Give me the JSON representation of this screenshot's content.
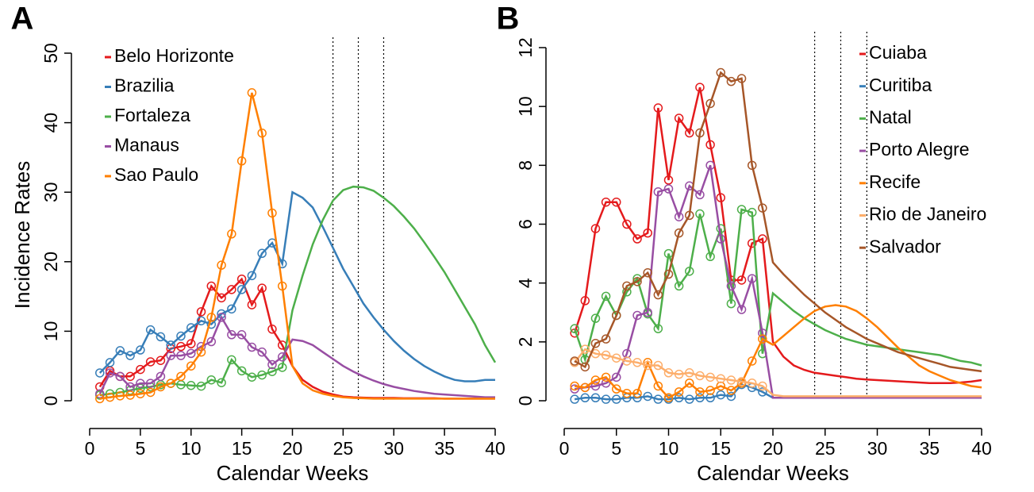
{
  "chart_data": [
    {
      "type": "line",
      "panel_label": "A",
      "xlabel": "Calendar Weeks",
      "ylabel": "Incidence Rates",
      "xlim": [
        0,
        40
      ],
      "xticks": [
        0,
        5,
        10,
        15,
        20,
        25,
        30,
        35,
        40
      ],
      "ylim": [
        0,
        50
      ],
      "yticks": [
        0,
        10,
        20,
        30,
        40,
        50
      ],
      "legend": "top-left",
      "observed_until": 19,
      "vlines": [
        24,
        26.5,
        29
      ],
      "x": [
        1,
        2,
        3,
        4,
        5,
        6,
        7,
        8,
        9,
        10,
        11,
        12,
        13,
        14,
        15,
        16,
        17,
        18,
        19,
        20,
        21,
        22,
        23,
        24,
        25,
        26,
        27,
        28,
        29,
        30,
        31,
        32,
        33,
        34,
        35,
        36,
        37,
        38,
        39,
        40
      ],
      "series": [
        {
          "name": "Belo Horizonte",
          "color": "#e41a1c",
          "values": [
            2,
            4.3,
            3.5,
            3.5,
            4.5,
            5.6,
            5.8,
            7.5,
            7.8,
            8.2,
            12.8,
            16.5,
            14.8,
            16,
            17.5,
            13.8,
            16.2,
            10.3,
            8,
            5,
            3,
            2,
            1.3,
            0.9,
            0.6,
            0.5,
            0.45,
            0.4,
            0.4,
            0.4,
            0.35,
            0.35,
            0.35,
            0.35,
            0.3,
            0.3,
            0.3,
            0.3,
            0.3,
            0.3
          ]
        },
        {
          "name": "Brazilia",
          "color": "#377eb8",
          "values": [
            4,
            5.5,
            7.2,
            6.5,
            7.3,
            10.2,
            9.2,
            8,
            9.3,
            10.5,
            11.5,
            11,
            12.5,
            13.2,
            16,
            18,
            21.2,
            22.7,
            19.7,
            30,
            29.2,
            27.8,
            25,
            22,
            19,
            16.5,
            14,
            12,
            10.2,
            8.6,
            7.2,
            6,
            5,
            4.2,
            3.5,
            3,
            2.8,
            2.8,
            3,
            3
          ]
        },
        {
          "name": "Fortaleza",
          "color": "#4daf4a",
          "values": [
            0.8,
            1,
            1.2,
            1.5,
            1.8,
            2,
            2.3,
            2.5,
            2.3,
            2.2,
            2.1,
            3,
            2.6,
            5.9,
            4.3,
            3.4,
            3.7,
            4.2,
            4.8,
            13,
            18,
            22.5,
            26,
            28.8,
            30.3,
            30.8,
            30.7,
            30.2,
            29.2,
            28,
            26.5,
            24.8,
            22.8,
            20.7,
            18.5,
            16,
            13.5,
            11,
            8,
            5.5
          ]
        },
        {
          "name": "Manaus",
          "color": "#984ea3",
          "values": [
            1,
            4,
            3.5,
            2,
            2.5,
            2.5,
            3.5,
            6.5,
            6.5,
            6.8,
            7.8,
            8.5,
            12,
            9.5,
            9.5,
            7.7,
            7,
            5.2,
            6.3,
            8.8,
            8.6,
            8,
            7,
            6,
            5,
            4.2,
            3.5,
            2.9,
            2.4,
            2,
            1.7,
            1.4,
            1.2,
            1,
            0.9,
            0.8,
            0.7,
            0.6,
            0.5,
            0.5
          ]
        },
        {
          "name": "Sao Paulo",
          "color": "#ff7f00",
          "values": [
            0.3,
            0.5,
            0.7,
            0.8,
            1,
            1.2,
            2,
            2.5,
            3.5,
            5,
            7,
            12,
            19.5,
            24,
            34.5,
            44.3,
            38.5,
            27,
            16.5,
            5,
            2.5,
            1.5,
            1,
            0.7,
            0.5,
            0.4,
            0.35,
            0.3,
            0.3,
            0.3,
            0.3,
            0.3,
            0.3,
            0.3,
            0.3,
            0.3,
            0.3,
            0.3,
            0.3,
            0.3
          ]
        }
      ]
    },
    {
      "type": "line",
      "panel_label": "B",
      "xlabel": "Calendar Weeks",
      "xlim": [
        0,
        40
      ],
      "xticks": [
        0,
        5,
        10,
        15,
        20,
        25,
        30,
        35,
        40
      ],
      "ylim": [
        0,
        12
      ],
      "yticks": [
        0,
        2,
        4,
        6,
        8,
        10,
        12
      ],
      "legend": "top-right",
      "observed_until": 19,
      "vlines": [
        24,
        26.5,
        29
      ],
      "x": [
        1,
        2,
        3,
        4,
        5,
        6,
        7,
        8,
        9,
        10,
        11,
        12,
        13,
        14,
        15,
        16,
        17,
        18,
        19,
        20,
        21,
        22,
        23,
        24,
        25,
        26,
        27,
        28,
        29,
        30,
        31,
        32,
        33,
        34,
        35,
        36,
        37,
        38,
        39,
        40
      ],
      "series": [
        {
          "name": "Cuiaba",
          "color": "#e41a1c",
          "values": [
            2.3,
            3.4,
            5.85,
            6.75,
            6.75,
            6,
            5.5,
            5.7,
            9.95,
            7.5,
            9.6,
            9.1,
            10.65,
            8.7,
            6.9,
            4.1,
            4.1,
            5.35,
            5.5,
            2,
            1.5,
            1.2,
            1.05,
            0.95,
            0.9,
            0.85,
            0.8,
            0.75,
            0.72,
            0.7,
            0.68,
            0.66,
            0.64,
            0.62,
            0.6,
            0.6,
            0.6,
            0.62,
            0.65,
            0.7
          ]
        },
        {
          "name": "Curitiba",
          "color": "#377eb8",
          "values": [
            0.05,
            0.1,
            0.1,
            0.05,
            0.05,
            0.1,
            0.1,
            0.15,
            0.05,
            0.05,
            0.1,
            0.05,
            0.1,
            0.1,
            0.2,
            0.15,
            0.55,
            0.45,
            0.3,
            0.1,
            0.1,
            0.1,
            0.1,
            0.1,
            0.1,
            0.1,
            0.1,
            0.1,
            0.1,
            0.1,
            0.1,
            0.1,
            0.1,
            0.1,
            0.1,
            0.1,
            0.1,
            0.1,
            0.1,
            0.1
          ]
        },
        {
          "name": "Natal",
          "color": "#4daf4a",
          "values": [
            2.45,
            1.4,
            2.8,
            3.55,
            2.9,
            3.7,
            4.15,
            2.95,
            2.45,
            5,
            3.9,
            4.4,
            6.35,
            4.9,
            5.85,
            3.3,
            6.5,
            6.4,
            1.6,
            3.65,
            3.35,
            3.05,
            2.8,
            2.6,
            2.4,
            2.25,
            2.1,
            2,
            1.9,
            1.85,
            1.8,
            1.75,
            1.7,
            1.65,
            1.6,
            1.55,
            1.45,
            1.35,
            1.3,
            1.2
          ]
        },
        {
          "name": "Porto Alegre",
          "color": "#984ea3",
          "values": [
            0.4,
            0.45,
            0.5,
            0.6,
            0.8,
            1.6,
            2.9,
            3,
            7.1,
            7.2,
            6.25,
            7.3,
            7,
            8,
            5.5,
            3.9,
            3.1,
            4.15,
            2.3,
            0.1,
            0.1,
            0.1,
            0.1,
            0.1,
            0.1,
            0.1,
            0.1,
            0.1,
            0.1,
            0.1,
            0.1,
            0.1,
            0.1,
            0.1,
            0.1,
            0.1,
            0.1,
            0.1,
            0.1,
            0.1
          ]
        },
        {
          "name": "Recife",
          "color": "#ff7f00",
          "values": [
            0.5,
            0.45,
            0.7,
            0.8,
            0.4,
            0.25,
            0.25,
            1.3,
            0.5,
            0.1,
            0.3,
            0.6,
            0.3,
            0.35,
            0.5,
            0.35,
            0.6,
            1.35,
            2.1,
            1.9,
            2.2,
            2.5,
            2.8,
            3.05,
            3.2,
            3.25,
            3.2,
            3.05,
            2.8,
            2.5,
            2.15,
            1.8,
            1.5,
            1.2,
            1,
            0.85,
            0.7,
            0.6,
            0.5,
            0.45
          ]
        },
        {
          "name": "Rio de Janeiro",
          "color": "#fdae6b",
          "values": [
            1.3,
            1.75,
            1.6,
            1.55,
            1.45,
            1.35,
            1.3,
            1.2,
            1.2,
            0.95,
            0.9,
            0.95,
            0.85,
            0.8,
            0.75,
            0.7,
            0.65,
            0.6,
            0.5,
            0.2,
            0.15,
            0.15,
            0.15,
            0.15,
            0.15,
            0.15,
            0.15,
            0.15,
            0.15,
            0.15,
            0.15,
            0.15,
            0.15,
            0.15,
            0.15,
            0.15,
            0.15,
            0.15,
            0.15,
            0.15
          ]
        },
        {
          "name": "Salvador",
          "color": "#a65628",
          "values": [
            1.35,
            1.15,
            1.95,
            2.1,
            2.9,
            3.9,
            4.05,
            4.35,
            3.6,
            4.3,
            5.7,
            6.3,
            9.1,
            10.1,
            11.15,
            10.85,
            10.95,
            8,
            6.55,
            4.7,
            4.3,
            3.95,
            3.6,
            3.3,
            3,
            2.75,
            2.5,
            2.3,
            2.1,
            1.95,
            1.8,
            1.65,
            1.55,
            1.45,
            1.35,
            1.25,
            1.15,
            1.1,
            1.05,
            1
          ]
        }
      ]
    }
  ]
}
